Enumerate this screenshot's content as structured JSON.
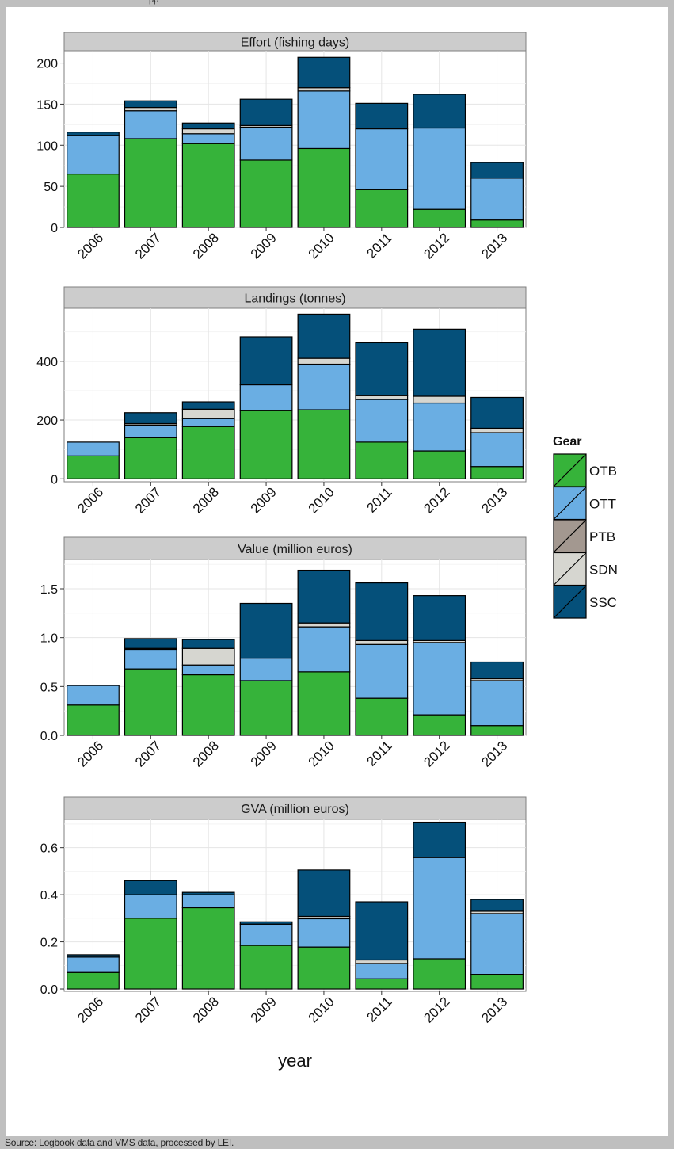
{
  "top_text": "pp",
  "source": "Source: Logbook data and VMS data, processed by LEI.",
  "legend": {
    "title": "Gear",
    "entries": [
      {
        "name": "OTB",
        "color": "#36b33a"
      },
      {
        "name": "OTT",
        "color": "#6aaee3"
      },
      {
        "name": "PTB",
        "color": "#a39890"
      },
      {
        "name": "SDN",
        "color": "#d6d6d0"
      },
      {
        "name": "SSC",
        "color": "#05507a"
      }
    ]
  },
  "chart_data": [
    {
      "type": "bar",
      "stacked": true,
      "title": "Effort (fishing days)",
      "xlabel": "",
      "categories": [
        "2006",
        "2007",
        "2008",
        "2009",
        "2010",
        "2011",
        "2012",
        "2013"
      ],
      "ylim": [
        0,
        215
      ],
      "yticks": [
        0,
        50,
        100,
        150,
        200
      ],
      "yticklabels": [
        "0",
        "50",
        "100",
        "150",
        "200"
      ],
      "series": [
        {
          "name": "OTB",
          "values": [
            65,
            108,
            102,
            82,
            96,
            46,
            22,
            9
          ]
        },
        {
          "name": "OTT",
          "values": [
            47,
            34,
            12,
            40,
            70,
            74,
            99,
            51
          ]
        },
        {
          "name": "PTB",
          "values": [
            0,
            0,
            0,
            0,
            0,
            0,
            0,
            0
          ]
        },
        {
          "name": "SDN",
          "values": [
            0,
            4,
            6,
            2,
            4,
            0,
            0,
            0
          ]
        },
        {
          "name": "SSC",
          "values": [
            4,
            8,
            7,
            32,
            37,
            31,
            41,
            19
          ]
        }
      ]
    },
    {
      "type": "bar",
      "stacked": true,
      "title": "Landings (tonnes)",
      "xlabel": "",
      "categories": [
        "2006",
        "2007",
        "2008",
        "2009",
        "2010",
        "2011",
        "2012",
        "2013"
      ],
      "ylim": [
        -10,
        580
      ],
      "yticks": [
        0,
        200,
        400
      ],
      "yticklabels": [
        "0",
        "200",
        "400"
      ],
      "series": [
        {
          "name": "OTB",
          "values": [
            78,
            140,
            178,
            232,
            235,
            125,
            95,
            42
          ]
        },
        {
          "name": "OTT",
          "values": [
            47,
            43,
            27,
            88,
            155,
            145,
            163,
            115
          ]
        },
        {
          "name": "PTB",
          "values": [
            0,
            0,
            0,
            0,
            0,
            0,
            0,
            0
          ]
        },
        {
          "name": "SDN",
          "values": [
            0,
            5,
            32,
            0,
            20,
            13,
            23,
            15
          ]
        },
        {
          "name": "SSC",
          "values": [
            0,
            37,
            25,
            163,
            150,
            180,
            228,
            105
          ]
        }
      ]
    },
    {
      "type": "bar",
      "stacked": true,
      "title": "Value (million euros)",
      "xlabel": "",
      "categories": [
        "2006",
        "2007",
        "2008",
        "2009",
        "2010",
        "2011",
        "2012",
        "2013"
      ],
      "ylim": [
        0,
        1.8
      ],
      "yticks": [
        0,
        0.5,
        1.0,
        1.5
      ],
      "yticklabels": [
        "0.0",
        "0.5",
        "1.0",
        "1.5"
      ],
      "series": [
        {
          "name": "OTB",
          "values": [
            0.31,
            0.68,
            0.62,
            0.56,
            0.65,
            0.38,
            0.21,
            0.1
          ]
        },
        {
          "name": "OTT",
          "values": [
            0.2,
            0.2,
            0.1,
            0.23,
            0.46,
            0.55,
            0.74,
            0.46
          ]
        },
        {
          "name": "PTB",
          "values": [
            0,
            0,
            0,
            0,
            0,
            0,
            0,
            0
          ]
        },
        {
          "name": "SDN",
          "values": [
            0,
            0.01,
            0.17,
            0,
            0.04,
            0.04,
            0.02,
            0.02
          ]
        },
        {
          "name": "SSC",
          "values": [
            0,
            0.1,
            0.09,
            0.56,
            0.54,
            0.59,
            0.46,
            0.17
          ]
        }
      ]
    },
    {
      "type": "bar",
      "stacked": true,
      "title": "GVA (million euros)",
      "xlabel": "year",
      "categories": [
        "2006",
        "2007",
        "2008",
        "2009",
        "2010",
        "2011",
        "2012",
        "2013"
      ],
      "ylim": [
        -0.01,
        0.72
      ],
      "yticks": [
        0,
        0.2,
        0.4,
        0.6
      ],
      "yticklabels": [
        "0.0",
        "0.2",
        "0.4",
        "0.6"
      ],
      "series": [
        {
          "name": "OTB",
          "values": [
            0.07,
            0.3,
            0.345,
            0.185,
            0.178,
            0.043,
            0.128,
            0.062
          ]
        },
        {
          "name": "OTT",
          "values": [
            0.065,
            0.1,
            0.055,
            0.09,
            0.12,
            0.065,
            0.43,
            0.258
          ]
        },
        {
          "name": "PTB",
          "values": [
            0,
            0,
            0,
            0,
            0,
            0,
            0,
            0
          ]
        },
        {
          "name": "SDN",
          "values": [
            0,
            0,
            0,
            0,
            0.01,
            0.015,
            0,
            0.01
          ]
        },
        {
          "name": "SSC",
          "values": [
            0.01,
            0.06,
            0.01,
            0.01,
            0.197,
            0.247,
            0.15,
            0.05
          ]
        }
      ]
    }
  ]
}
